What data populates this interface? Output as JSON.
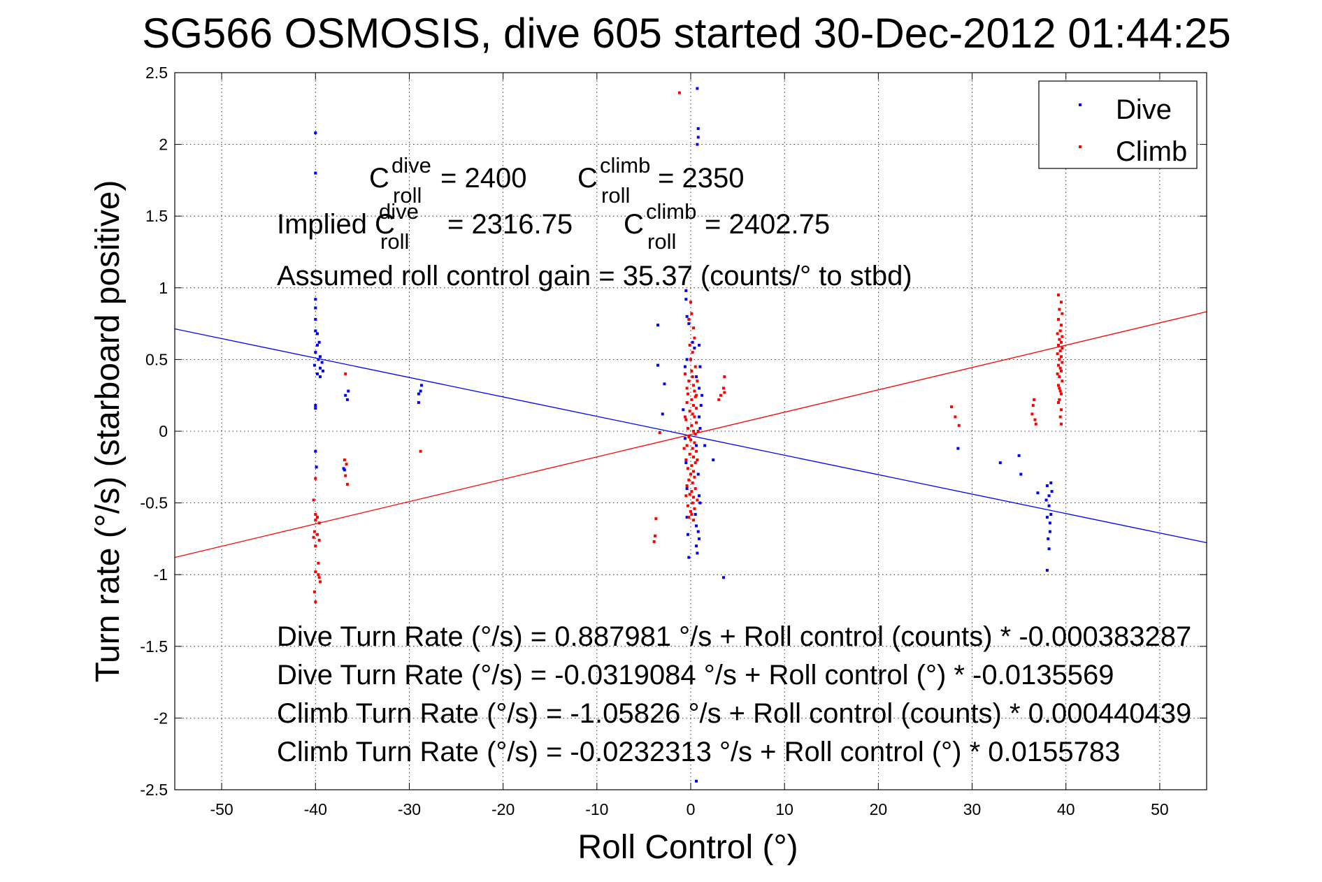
{
  "chart_data": {
    "type": "scatter",
    "title": "SG566 OSMOSIS, dive 605 started 30-Dec-2012 01:44:25",
    "xlabel": "Roll Control (°)",
    "ylabel": "Turn rate (°/s) (starboard positive)",
    "xlim": [
      -55,
      55
    ],
    "ylim": [
      -2.5,
      2.5
    ],
    "xticks": [
      -50,
      -40,
      -30,
      -20,
      -10,
      0,
      10,
      20,
      30,
      40,
      50
    ],
    "yticks": [
      -2.5,
      -2,
      -1.5,
      -1,
      -0.5,
      0,
      0.5,
      1,
      1.5,
      2,
      2.5
    ],
    "xtick_labels": [
      "-50",
      "-40",
      "-30",
      "-20",
      "-10",
      "0",
      "10",
      "20",
      "30",
      "40",
      "50"
    ],
    "ytick_labels": [
      "-2.5",
      "-2",
      "-1.5",
      "-1",
      "-0.5",
      "0",
      "0.5",
      "1",
      "1.5",
      "2",
      "2.5"
    ],
    "grid": true,
    "legend_position": "top-right",
    "legend": [
      "Dive",
      "Climb"
    ],
    "series": [
      {
        "name": "Dive",
        "color": "#0000ff",
        "points": [
          [
            -40,
            2.08
          ],
          [
            -40,
            1.8
          ],
          [
            -40,
            0.92
          ],
          [
            -40,
            0.86
          ],
          [
            -40,
            0.78
          ],
          [
            -40,
            0.7
          ],
          [
            -39.8,
            0.68
          ],
          [
            -39.6,
            0.62
          ],
          [
            -39.8,
            0.6
          ],
          [
            -40,
            0.55
          ],
          [
            -39.5,
            0.52
          ],
          [
            -39.7,
            0.5
          ],
          [
            -39.3,
            0.48
          ],
          [
            -40.1,
            0.46
          ],
          [
            -39.5,
            0.44
          ],
          [
            -39.2,
            0.42
          ],
          [
            -39.8,
            0.4
          ],
          [
            -39.5,
            0.38
          ],
          [
            -40,
            0.18
          ],
          [
            -40,
            0.16
          ],
          [
            -40,
            -0.14
          ],
          [
            -39.9,
            -0.25
          ],
          [
            -36.8,
            0.25
          ],
          [
            -36.5,
            0.28
          ],
          [
            -36.6,
            0.22
          ],
          [
            -37,
            -0.26
          ],
          [
            -36.9,
            -0.27
          ],
          [
            -29,
            0.26
          ],
          [
            -28.8,
            0.28
          ],
          [
            -28.7,
            0.32
          ],
          [
            -29,
            0.2
          ],
          [
            -3.5,
            0.74
          ],
          [
            -3.5,
            0.46
          ],
          [
            -2.8,
            0.33
          ],
          [
            -3,
            0.12
          ],
          [
            0.7,
            2.39
          ],
          [
            0.8,
            2.11
          ],
          [
            0.8,
            2.05
          ],
          [
            0.7,
            2.0
          ],
          [
            -0.5,
            0.98
          ],
          [
            -0.5,
            0.92
          ],
          [
            -0.4,
            0.8
          ],
          [
            -0.2,
            0.75
          ],
          [
            0.2,
            0.62
          ],
          [
            0.4,
            0.58
          ],
          [
            0.9,
            0.6
          ],
          [
            1.0,
            0.45
          ],
          [
            0.6,
            0.38
          ],
          [
            0.9,
            0.3
          ],
          [
            1.2,
            0.25
          ],
          [
            1.1,
            0.18
          ],
          [
            -0.8,
            0.15
          ],
          [
            0.9,
            0.1
          ],
          [
            1.0,
            0.02
          ],
          [
            -0.6,
            -0.05
          ],
          [
            -0.5,
            -0.22
          ],
          [
            0.8,
            -0.3
          ],
          [
            0.9,
            -0.45
          ],
          [
            1.0,
            -0.5
          ],
          [
            -0.4,
            -0.6
          ],
          [
            0.6,
            -0.66
          ],
          [
            0.9,
            -0.75
          ],
          [
            0.6,
            -0.8
          ],
          [
            -0.2,
            -0.88
          ],
          [
            0.7,
            -0.85
          ],
          [
            0.8,
            -0.7
          ],
          [
            -0.3,
            -0.72
          ],
          [
            0.5,
            -0.58
          ],
          [
            1.5,
            -0.1
          ],
          [
            2.4,
            -0.2
          ],
          [
            -0.4,
            0.5
          ],
          [
            -0.6,
            0.45
          ],
          [
            -0.4,
            -0.4
          ],
          [
            0.6,
            -0.1
          ],
          [
            3.5,
            -1.02
          ],
          [
            0.6,
            -2.44
          ],
          [
            28.5,
            -0.12
          ],
          [
            33,
            -0.22
          ],
          [
            35,
            -0.17
          ],
          [
            35.2,
            -0.3
          ],
          [
            37,
            -0.43
          ],
          [
            38,
            -0.97
          ],
          [
            38.2,
            -0.82
          ],
          [
            38.1,
            -0.75
          ],
          [
            38.3,
            -0.7
          ],
          [
            38.3,
            -0.64
          ],
          [
            38.0,
            -0.6
          ],
          [
            38.4,
            -0.58
          ],
          [
            38.2,
            -0.52
          ],
          [
            37.9,
            -0.48
          ],
          [
            38.2,
            -0.45
          ],
          [
            38.5,
            -0.42
          ],
          [
            38.0,
            -0.38
          ],
          [
            38.4,
            -0.36
          ]
        ]
      },
      {
        "name": "Climb",
        "color": "#ff0000",
        "points": [
          [
            -40,
            -0.33
          ],
          [
            -40.2,
            -0.48
          ],
          [
            -40,
            -0.58
          ],
          [
            -39.8,
            -0.6
          ],
          [
            -40,
            -0.62
          ],
          [
            -39.6,
            -0.64
          ],
          [
            -40.1,
            -0.7
          ],
          [
            -39.8,
            -0.72
          ],
          [
            -40.2,
            -0.74
          ],
          [
            -39.6,
            -0.76
          ],
          [
            -40,
            -0.8
          ],
          [
            -39.7,
            -0.92
          ],
          [
            -40,
            -0.98
          ],
          [
            -39.7,
            -1.0
          ],
          [
            -39.6,
            -1.02
          ],
          [
            -39.5,
            -1.05
          ],
          [
            -40.1,
            -1.12
          ],
          [
            -40,
            -1.19
          ],
          [
            -36.8,
            0.4
          ],
          [
            -36.9,
            -0.2
          ],
          [
            -36.7,
            -0.23
          ],
          [
            -36.8,
            -0.31
          ],
          [
            -36.6,
            -0.37
          ],
          [
            -28.8,
            -0.14
          ],
          [
            -3.7,
            -0.61
          ],
          [
            -3.8,
            -0.73
          ],
          [
            -3.9,
            -0.77
          ],
          [
            -1.2,
            2.36
          ],
          [
            0,
            0.5
          ],
          [
            0.1,
            0.42
          ],
          [
            0.2,
            0.38
          ],
          [
            -0.2,
            0.35
          ],
          [
            0.3,
            0.32
          ],
          [
            0.4,
            0.28
          ],
          [
            -0.3,
            0.26
          ],
          [
            0.5,
            0.24
          ],
          [
            0.1,
            0.22
          ],
          [
            -0.4,
            0.2
          ],
          [
            0.3,
            0.18
          ],
          [
            0.6,
            0.16
          ],
          [
            -0.1,
            0.14
          ],
          [
            0.2,
            0.12
          ],
          [
            0.4,
            0.1
          ],
          [
            -0.5,
            0.08
          ],
          [
            0.6,
            0.06
          ],
          [
            0.1,
            0.04
          ],
          [
            -0.3,
            0.02
          ],
          [
            0.3,
            0.0
          ],
          [
            0.5,
            -0.02
          ],
          [
            -0.2,
            -0.04
          ],
          [
            0.0,
            -0.06
          ],
          [
            0.4,
            -0.08
          ],
          [
            -0.4,
            -0.1
          ],
          [
            0.2,
            -0.12
          ],
          [
            0.6,
            -0.14
          ],
          [
            -0.1,
            -0.16
          ],
          [
            0.3,
            -0.18
          ],
          [
            -0.5,
            -0.2
          ],
          [
            0.5,
            -0.22
          ],
          [
            0.1,
            -0.24
          ],
          [
            -0.3,
            -0.26
          ],
          [
            0.3,
            -0.28
          ],
          [
            0.0,
            -0.3
          ],
          [
            0.4,
            -0.32
          ],
          [
            -0.2,
            -0.34
          ],
          [
            0.2,
            -0.36
          ],
          [
            -0.4,
            -0.38
          ],
          [
            0.5,
            -0.4
          ],
          [
            0.1,
            -0.42
          ],
          [
            -0.1,
            -0.44
          ],
          [
            0.3,
            -0.46
          ],
          [
            0.2,
            -0.5
          ],
          [
            -0.3,
            -0.52
          ],
          [
            0.4,
            -0.54
          ],
          [
            0.0,
            -0.56
          ],
          [
            0.1,
            -0.58
          ],
          [
            -0.2,
            -0.6
          ],
          [
            0.3,
            -0.62
          ],
          [
            0.2,
            0.55
          ],
          [
            -0.1,
            0.6
          ],
          [
            0.4,
            0.65
          ],
          [
            0.3,
            0.72
          ],
          [
            -0.2,
            0.78
          ],
          [
            0.1,
            0.82
          ],
          [
            0.0,
            0.9
          ],
          [
            0.5,
            0.45
          ],
          [
            -0.4,
            0.3
          ],
          [
            0.7,
            0.35
          ],
          [
            -0.6,
            0.1
          ],
          [
            0.8,
            0.0
          ],
          [
            -0.7,
            -0.12
          ],
          [
            0.7,
            -0.2
          ],
          [
            -0.5,
            -0.45
          ],
          [
            0.7,
            -0.48
          ],
          [
            0.6,
            0.25
          ],
          [
            -0.6,
            0.4
          ],
          [
            3.0,
            0.22
          ],
          [
            3.2,
            0.25
          ],
          [
            3.5,
            0.3
          ],
          [
            3.6,
            0.38
          ],
          [
            3.6,
            0.27
          ],
          [
            -3.3,
            -0.01
          ],
          [
            27.8,
            0.17
          ],
          [
            28.2,
            0.1
          ],
          [
            28.6,
            0.04
          ],
          [
            36.6,
            0.22
          ],
          [
            36.5,
            0.18
          ],
          [
            36.4,
            0.12
          ],
          [
            36.7,
            0.08
          ],
          [
            36.8,
            0.05
          ],
          [
            39.2,
            0.95
          ],
          [
            39.5,
            0.9
          ],
          [
            39.3,
            0.85
          ],
          [
            39.6,
            0.82
          ],
          [
            39.2,
            0.78
          ],
          [
            39.5,
            0.74
          ],
          [
            39.4,
            0.7
          ],
          [
            39.1,
            0.68
          ],
          [
            39.6,
            0.66
          ],
          [
            39.3,
            0.64
          ],
          [
            39.5,
            0.62
          ],
          [
            39.2,
            0.6
          ],
          [
            39.6,
            0.58
          ],
          [
            39.4,
            0.56
          ],
          [
            39.1,
            0.54
          ],
          [
            39.5,
            0.52
          ],
          [
            39.3,
            0.5
          ],
          [
            39.6,
            0.48
          ],
          [
            39.2,
            0.46
          ],
          [
            39.4,
            0.44
          ],
          [
            39.5,
            0.42
          ],
          [
            39.3,
            0.38
          ],
          [
            39.6,
            0.35
          ],
          [
            39.2,
            0.32
          ],
          [
            39.4,
            0.28
          ],
          [
            39.5,
            0.26
          ],
          [
            39.3,
            0.22
          ],
          [
            39.2,
            0.2
          ],
          [
            39.5,
            0.15
          ],
          [
            39.4,
            0.1
          ],
          [
            39.5,
            0.05
          ],
          [
            39.3,
            0.3
          ],
          [
            39.1,
            0.4
          ]
        ]
      }
    ],
    "fit_lines": [
      {
        "name": "Dive fit",
        "color": "#0000ff",
        "x": [
          -55,
          55
        ],
        "y": [
          0.7137,
          -0.7775
        ]
      },
      {
        "name": "Climb fit",
        "color": "#ff0000",
        "x": [
          -55,
          55
        ],
        "y": [
          -0.88,
          0.8336
        ]
      }
    ],
    "annotations": {
      "c_roll_dive": {
        "prefix": "C",
        "sup": "dive",
        "sub": "roll",
        "value": "= 2400"
      },
      "c_roll_climb": {
        "prefix": "C",
        "sup": "climb",
        "sub": "roll",
        "value": "= 2350"
      },
      "implied_label": "Implied C",
      "implied_dive_sup": "dive",
      "implied_dive_sub": "roll",
      "implied_dive_value": "= 2316.75",
      "implied_climb": {
        "prefix": "C",
        "sup": "climb",
        "sub": "roll",
        "value": "= 2402.75"
      },
      "gain": "Assumed roll control gain = 35.37 (counts/° to stbd)",
      "eq1": "Dive Turn Rate (°/s) = 0.887981 °/s + Roll control (counts) * -0.000383287",
      "eq2": "Dive Turn Rate (°/s) = -0.0319084 °/s + Roll control (°) * -0.0135569",
      "eq3": "Climb Turn Rate (°/s) = -1.05826 °/s + Roll control (counts) * 0.000440439",
      "eq4": "Climb Turn Rate (°/s) = -0.0232313 °/s + Roll control (°) * 0.0155783"
    }
  }
}
